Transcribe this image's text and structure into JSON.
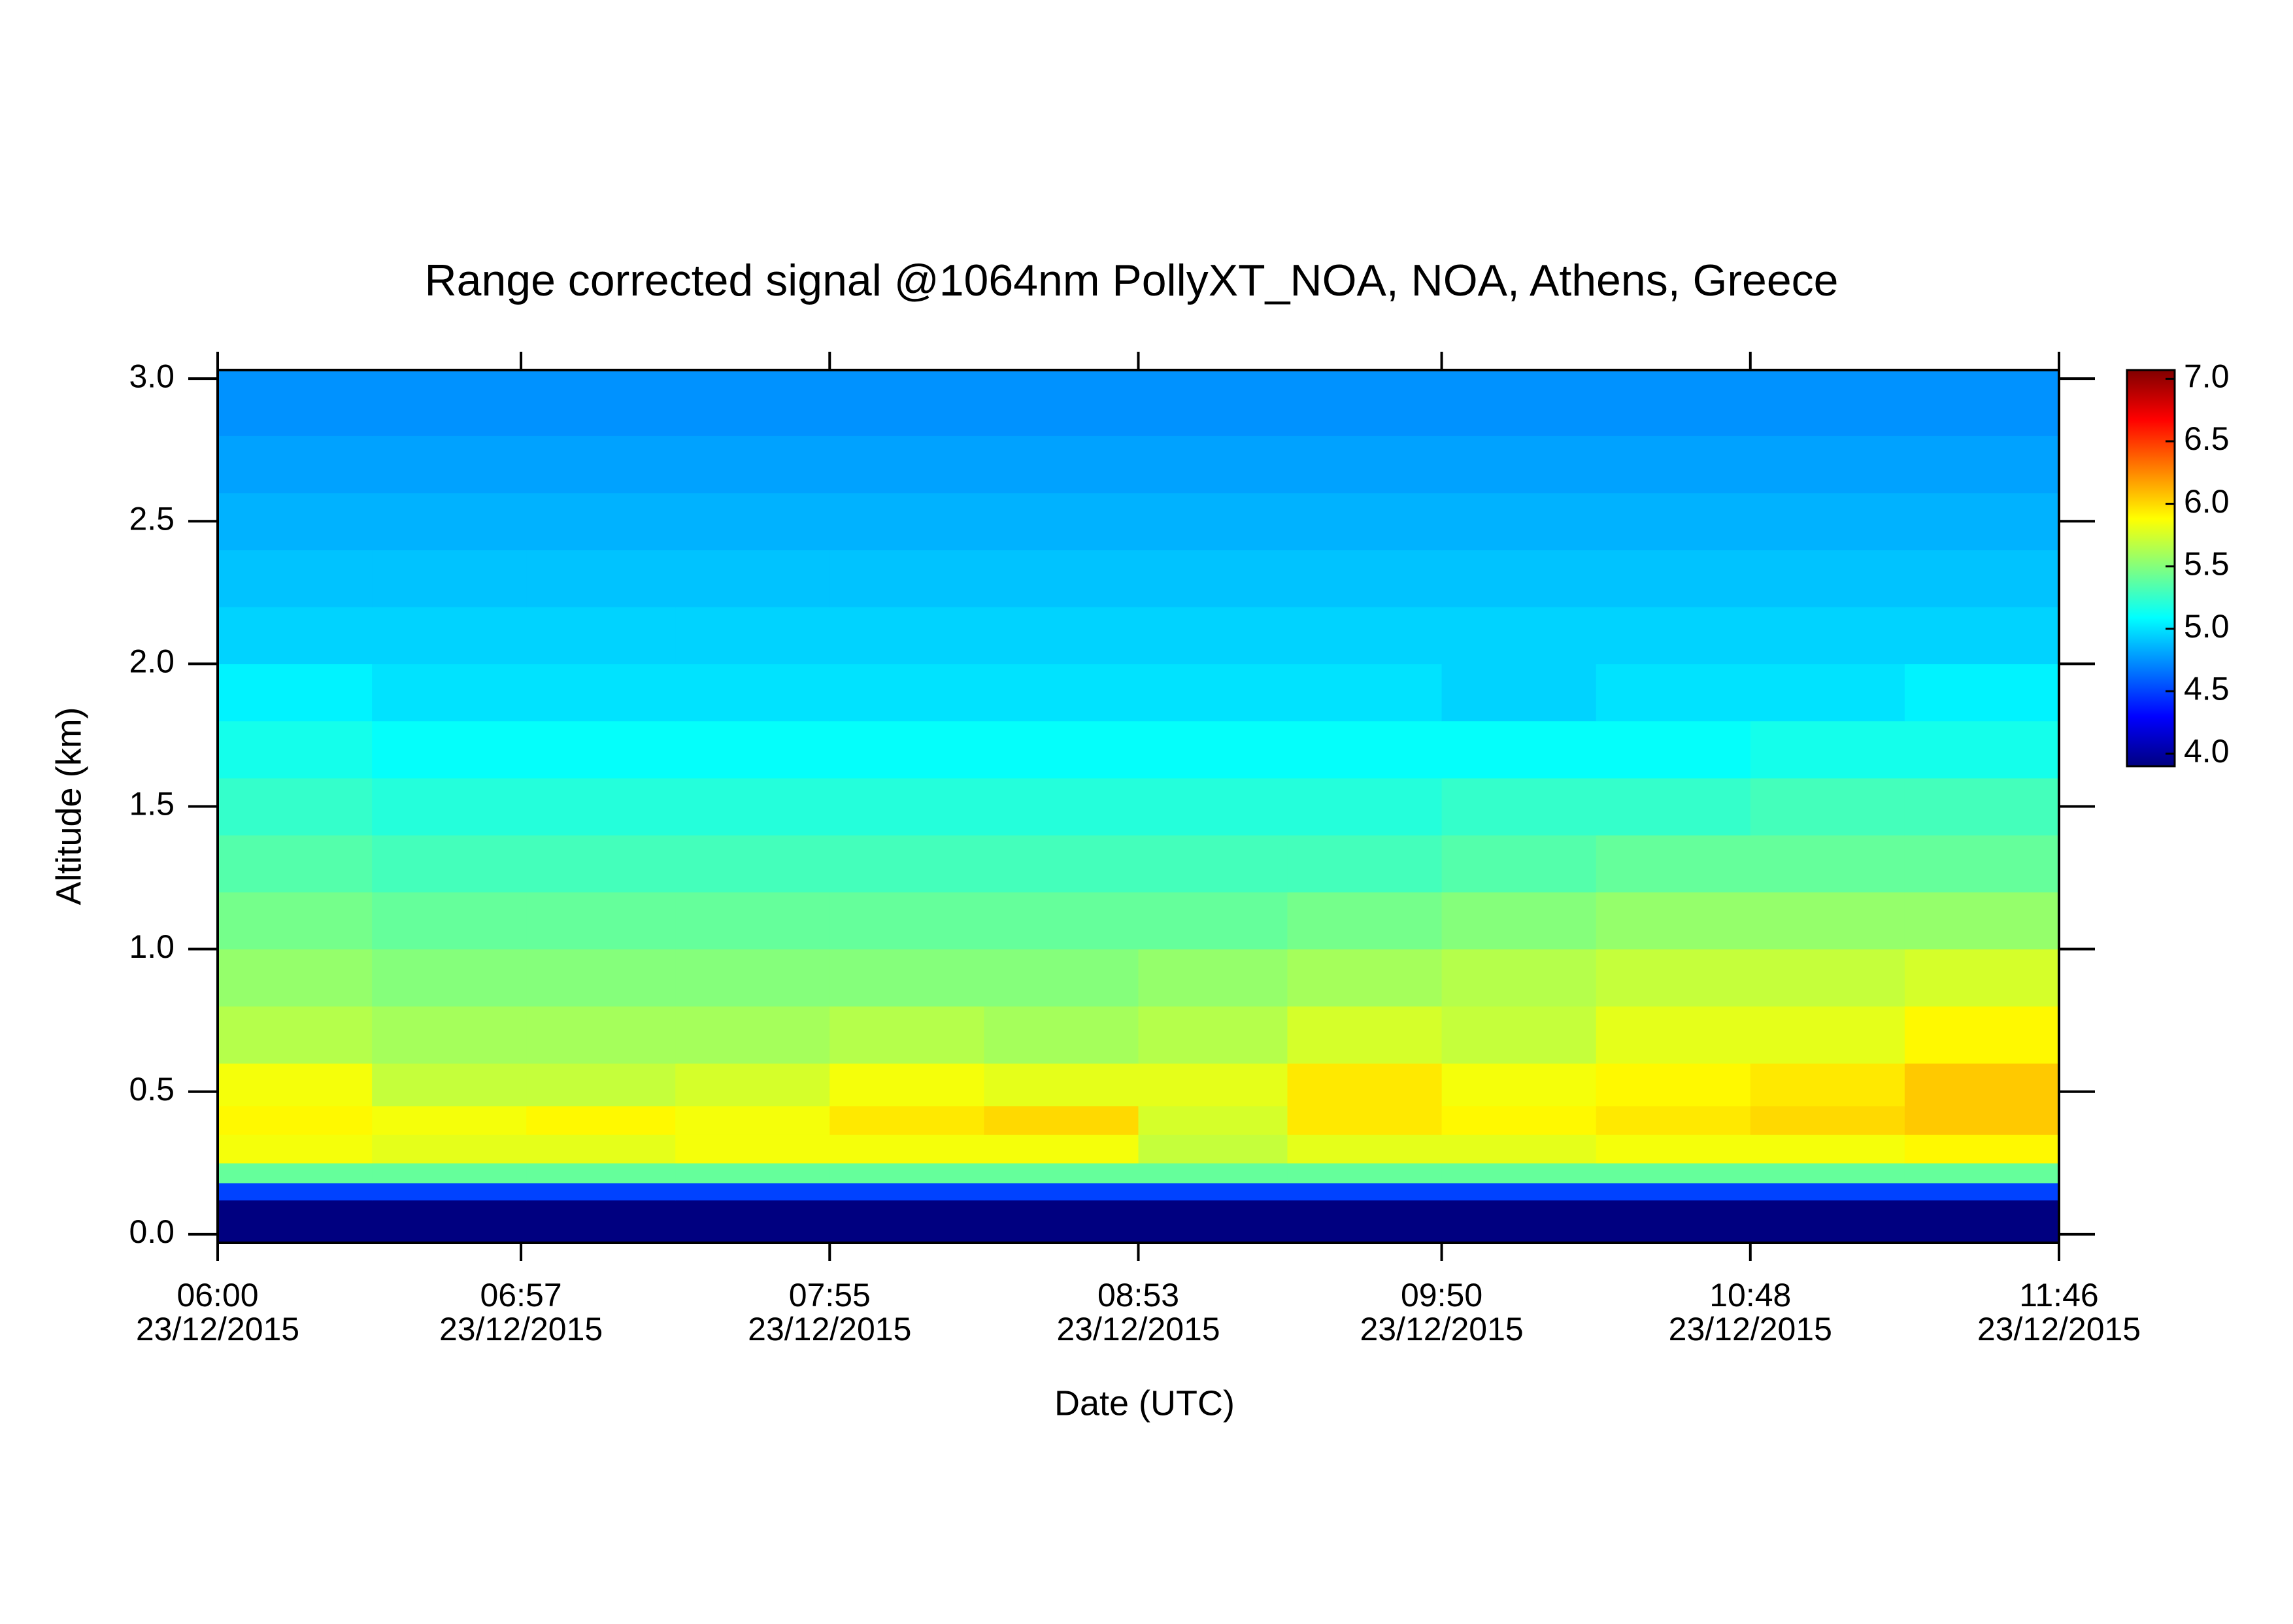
{
  "chart_data": {
    "type": "heatmap",
    "title": "Range corrected signal @1064nm  PollyXT_NOA, NOA, Athens, Greece",
    "x_label": "Date (UTC)",
    "y_label": "Altitude (km)",
    "x": [
      "23/12/2015 06:00",
      "23/12/2015 06:29",
      "23/12/2015 06:58",
      "23/12/2015 07:26",
      "23/12/2015 07:55",
      "23/12/2015 08:24",
      "23/12/2015 08:53",
      "23/12/2015 09:21",
      "23/12/2015 09:50",
      "23/12/2015 10:19",
      "23/12/2015 10:48",
      "23/12/2015 11:17"
    ],
    "y": [
      -0.03,
      0.12,
      0.18,
      0.25,
      0.35,
      0.45,
      0.6,
      0.8,
      1.0,
      1.2,
      1.4,
      1.6,
      1.8,
      2.0,
      2.2,
      2.4,
      2.6,
      2.8
    ],
    "z": [
      [
        3.9,
        3.9,
        3.9,
        3.9,
        3.9,
        3.9,
        3.9,
        3.9,
        3.9,
        3.9,
        3.9,
        3.9
      ],
      [
        4.5,
        4.5,
        4.5,
        4.5,
        4.5,
        4.5,
        4.5,
        4.5,
        4.5,
        4.5,
        4.5,
        4.5
      ],
      [
        5.4,
        5.4,
        5.4,
        5.4,
        5.4,
        5.4,
        5.4,
        5.4,
        5.4,
        5.4,
        5.4,
        5.4
      ],
      [
        5.85,
        5.8,
        5.8,
        5.85,
        5.85,
        5.85,
        5.7,
        5.8,
        5.8,
        5.85,
        5.85,
        5.9
      ],
      [
        5.9,
        5.85,
        5.9,
        5.85,
        5.95,
        6.0,
        5.75,
        5.95,
        5.9,
        5.95,
        6.0,
        6.05
      ],
      [
        5.85,
        5.7,
        5.7,
        5.75,
        5.85,
        5.8,
        5.8,
        5.95,
        5.85,
        5.9,
        5.95,
        6.05
      ],
      [
        5.65,
        5.6,
        5.6,
        5.6,
        5.65,
        5.6,
        5.65,
        5.75,
        5.7,
        5.8,
        5.8,
        5.9
      ],
      [
        5.55,
        5.5,
        5.5,
        5.5,
        5.5,
        5.5,
        5.55,
        5.6,
        5.65,
        5.7,
        5.7,
        5.75
      ],
      [
        5.45,
        5.4,
        5.4,
        5.4,
        5.4,
        5.4,
        5.4,
        5.45,
        5.5,
        5.55,
        5.55,
        5.55
      ],
      [
        5.35,
        5.3,
        5.3,
        5.3,
        5.3,
        5.3,
        5.3,
        5.3,
        5.35,
        5.4,
        5.4,
        5.4
      ],
      [
        5.25,
        5.2,
        5.2,
        5.2,
        5.2,
        5.2,
        5.2,
        5.2,
        5.25,
        5.25,
        5.3,
        5.3
      ],
      [
        5.15,
        5.1,
        5.1,
        5.1,
        5.1,
        5.1,
        5.1,
        5.1,
        5.1,
        5.1,
        5.15,
        5.15
      ],
      [
        5.05,
        5.0,
        5.0,
        5.0,
        5.0,
        5.0,
        5.0,
        5.0,
        4.95,
        5.0,
        5.0,
        5.05
      ],
      [
        4.95,
        4.95,
        4.95,
        4.95,
        4.95,
        4.95,
        4.95,
        4.95,
        4.95,
        4.95,
        4.95,
        4.95
      ],
      [
        4.9,
        4.9,
        4.9,
        4.9,
        4.9,
        4.9,
        4.9,
        4.9,
        4.9,
        4.9,
        4.9,
        4.9
      ],
      [
        4.85,
        4.85,
        4.85,
        4.85,
        4.85,
        4.85,
        4.85,
        4.85,
        4.85,
        4.85,
        4.85,
        4.85
      ],
      [
        4.8,
        4.8,
        4.8,
        4.8,
        4.8,
        4.8,
        4.8,
        4.8,
        4.8,
        4.8,
        4.8,
        4.8
      ],
      [
        4.75,
        4.75,
        4.75,
        4.75,
        4.75,
        4.75,
        4.75,
        4.75,
        4.75,
        4.75,
        4.75,
        4.75
      ]
    ],
    "xlim": [
      "23/12/2015 06:00",
      "23/12/2015 11:46"
    ],
    "xticks": [
      {
        "value": "23/12/2015 06:00",
        "label": [
          "06:00",
          "23/12/2015"
        ]
      },
      {
        "value": "23/12/2015 06:57",
        "label": [
          "06:57",
          "23/12/2015"
        ]
      },
      {
        "value": "23/12/2015 07:55",
        "label": [
          "07:55",
          "23/12/2015"
        ]
      },
      {
        "value": "23/12/2015 08:53",
        "label": [
          "08:53",
          "23/12/2015"
        ]
      },
      {
        "value": "23/12/2015 09:50",
        "label": [
          "09:50",
          "23/12/2015"
        ]
      },
      {
        "value": "23/12/2015 10:48",
        "label": [
          "10:48",
          "23/12/2015"
        ]
      },
      {
        "value": "23/12/2015 11:46",
        "label": [
          "11:46",
          "23/12/2015"
        ]
      }
    ],
    "ylim": [
      -0.03,
      3.03
    ],
    "yticks": [
      {
        "value": 0,
        "label": "0.0"
      },
      {
        "value": 0.5,
        "label": "0.5"
      },
      {
        "value": 1,
        "label": "1.0"
      },
      {
        "value": 1.5,
        "label": "1.5"
      },
      {
        "value": 2,
        "label": "2.0"
      },
      {
        "value": 2.5,
        "label": "2.5"
      },
      {
        "value": 3,
        "label": "3.0"
      }
    ],
    "clim": [
      3.9,
      7.07
    ],
    "cticks": [
      {
        "value": 4,
        "label": "4.0"
      },
      {
        "value": 4.5,
        "label": "4.5"
      },
      {
        "value": 5,
        "label": "5.0"
      },
      {
        "value": 5.5,
        "label": "5.5"
      },
      {
        "value": 6,
        "label": "6.0"
      },
      {
        "value": 6.5,
        "label": "6.5"
      },
      {
        "value": 7,
        "label": "7.0"
      }
    ],
    "colorscale": [
      "#000080",
      "#0000ff",
      "#0080ff",
      "#00ffff",
      "#80ff80",
      "#ffff00",
      "#ff8000",
      "#ff0000",
      "#800000"
    ]
  }
}
